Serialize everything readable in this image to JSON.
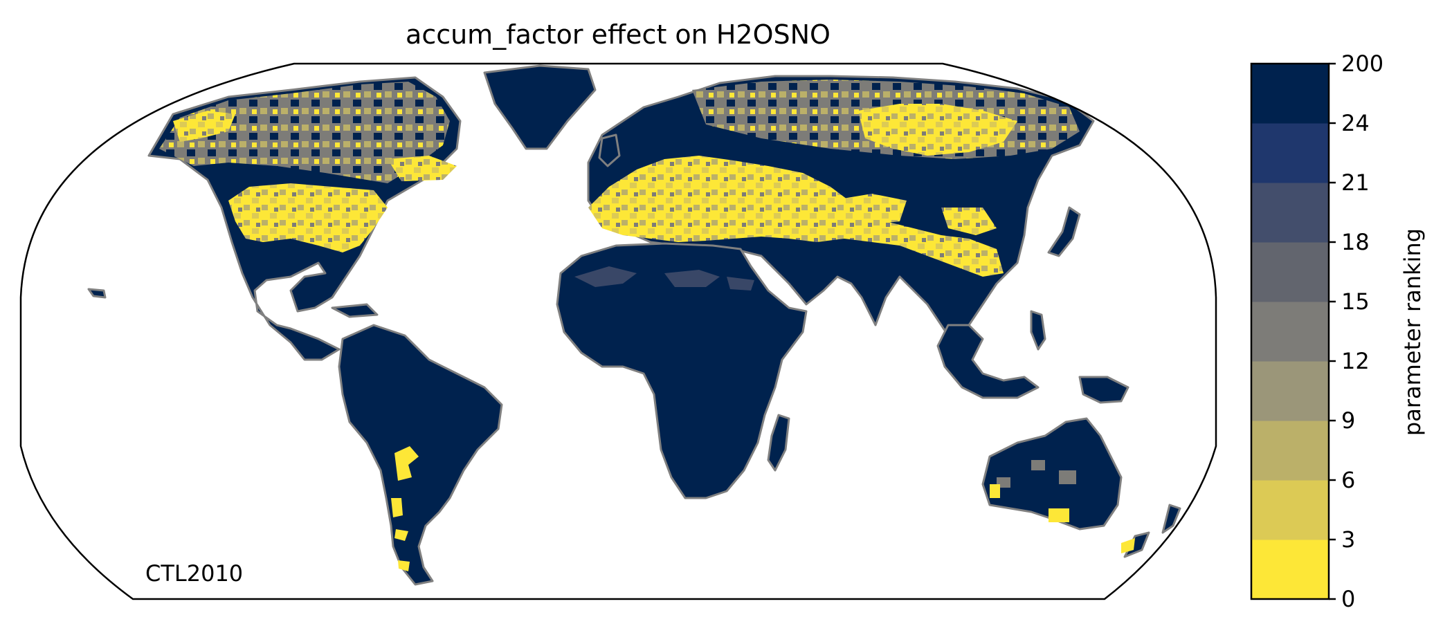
{
  "title": "accum_factor effect on H2OSNO",
  "map_label": "CTL2010",
  "colorbar": {
    "label": "parameter ranking",
    "ticks": [
      "0",
      "3",
      "6",
      "9",
      "12",
      "15",
      "18",
      "21",
      "24",
      "200"
    ],
    "levels": [
      {
        "from": 0,
        "to": 3,
        "color": "#fde737"
      },
      {
        "from": 3,
        "to": 6,
        "color": "#dcca55"
      },
      {
        "from": 6,
        "to": 9,
        "color": "#bbb069"
      },
      {
        "from": 9,
        "to": 12,
        "color": "#9b9679"
      },
      {
        "from": 12,
        "to": 15,
        "color": "#7d7c78"
      },
      {
        "from": 15,
        "to": 18,
        "color": "#62656e"
      },
      {
        "from": 18,
        "to": 21,
        "color": "#434e6c"
      },
      {
        "from": 21,
        "to": 24,
        "color": "#1f376d"
      },
      {
        "from": 24,
        "to": 200,
        "color": "#00224e"
      }
    ]
  },
  "colors": {
    "coastline": "#808080",
    "frame": "#000000",
    "land_default": "#00224e"
  }
}
